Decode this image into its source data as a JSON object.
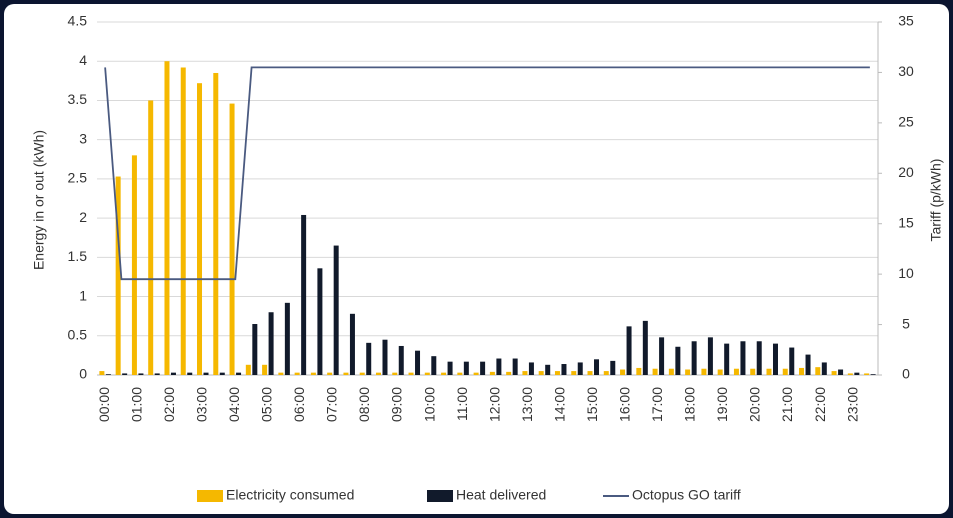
{
  "chart_data": {
    "type": "bar",
    "categories": [
      "00:00",
      null,
      "01:00",
      null,
      "02:00",
      null,
      "03:00",
      null,
      "04:00",
      null,
      "05:00",
      null,
      "06:00",
      null,
      "07:00",
      null,
      "08:00",
      null,
      "09:00",
      null,
      "10:00",
      null,
      "11:00",
      null,
      "12:00",
      null,
      "13:00",
      null,
      "14:00",
      null,
      "15:00",
      null,
      "16:00",
      null,
      "17:00",
      null,
      "18:00",
      null,
      "19:00",
      null,
      "20:00",
      null,
      "21:00",
      null,
      "22:00",
      null,
      "23:00",
      null
    ],
    "series": [
      {
        "name": "Electricity consumed",
        "color": "#f5b800",
        "type": "bar",
        "values": [
          0.05,
          2.53,
          2.8,
          3.5,
          4.0,
          3.92,
          3.72,
          3.85,
          3.46,
          0.13,
          0.13,
          0.03,
          0.03,
          0.03,
          0.03,
          0.03,
          0.03,
          0.03,
          0.03,
          0.03,
          0.03,
          0.03,
          0.03,
          0.03,
          0.04,
          0.04,
          0.05,
          0.05,
          0.05,
          0.05,
          0.05,
          0.05,
          0.07,
          0.09,
          0.08,
          0.08,
          0.07,
          0.08,
          0.07,
          0.08,
          0.08,
          0.08,
          0.08,
          0.09,
          0.1,
          0.05,
          0.02,
          0.02
        ]
      },
      {
        "name": "Heat delivered",
        "color": "#111a2b",
        "type": "bar",
        "values": [
          0.01,
          0.02,
          0.02,
          0.02,
          0.03,
          0.03,
          0.03,
          0.03,
          0.03,
          0.65,
          0.8,
          0.92,
          2.04,
          1.36,
          1.65,
          0.78,
          0.41,
          0.45,
          0.37,
          0.31,
          0.24,
          0.17,
          0.17,
          0.17,
          0.21,
          0.21,
          0.16,
          0.13,
          0.14,
          0.16,
          0.2,
          0.18,
          0.62,
          0.69,
          0.48,
          0.36,
          0.43,
          0.48,
          0.4,
          0.43,
          0.43,
          0.4,
          0.35,
          0.26,
          0.16,
          0.07,
          0.03,
          0.01
        ]
      },
      {
        "name": "Octopus GO tariff",
        "color": "#4a5a80",
        "type": "line",
        "axis": "y2",
        "values": [
          30.5,
          9.5,
          9.5,
          9.5,
          9.5,
          9.5,
          9.5,
          9.5,
          9.5,
          30.5,
          30.5,
          30.5,
          30.5,
          30.5,
          30.5,
          30.5,
          30.5,
          30.5,
          30.5,
          30.5,
          30.5,
          30.5,
          30.5,
          30.5,
          30.5,
          30.5,
          30.5,
          30.5,
          30.5,
          30.5,
          30.5,
          30.5,
          30.5,
          30.5,
          30.5,
          30.5,
          30.5,
          30.5,
          30.5,
          30.5,
          30.5,
          30.5,
          30.5,
          30.5,
          30.5,
          30.5,
          30.5,
          30.5
        ]
      }
    ],
    "ylabel": "Energy in or out (kWh)",
    "y2label": "Tariff (p/kWh)",
    "ylim": [
      0,
      4.5
    ],
    "yticks": [
      0,
      0.5,
      1,
      1.5,
      2,
      2.5,
      3,
      3.5,
      4,
      4.5
    ],
    "y2lim": [
      0,
      35
    ],
    "y2ticks": [
      0,
      5,
      10,
      15,
      20,
      25,
      30,
      35
    ],
    "grid": true,
    "legend": "bottom"
  }
}
